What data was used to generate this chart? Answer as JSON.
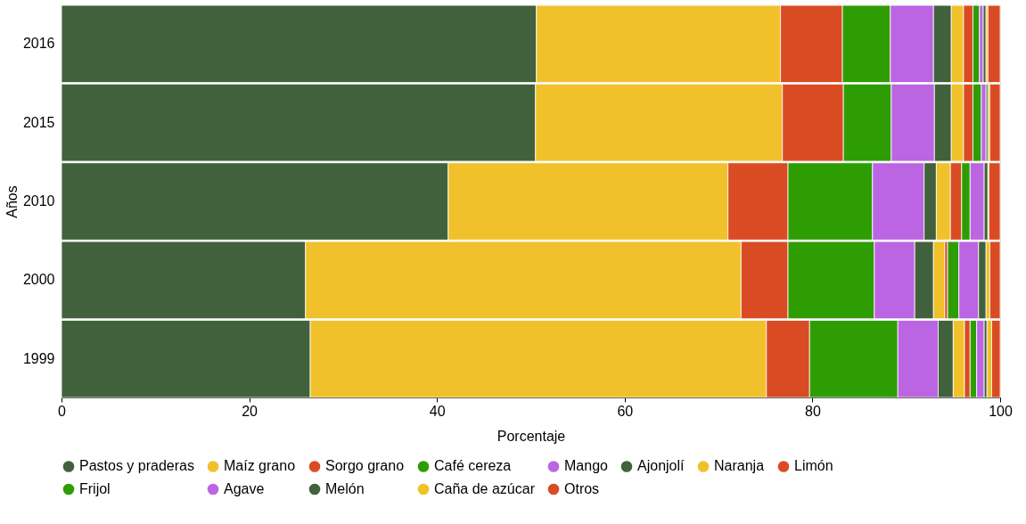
{
  "chart_data": {
    "type": "bar",
    "orientation": "horizontal",
    "stacked": true,
    "xlabel": "Porcentaje",
    "ylabel": "Años",
    "categories": [
      "2016",
      "2015",
      "2010",
      "2000",
      "1999"
    ],
    "xlim": [
      0,
      100
    ],
    "xticks": [
      0,
      20,
      40,
      60,
      80,
      100
    ],
    "legend": "bottom",
    "series": [
      {
        "name": "Pastos y praderas",
        "color": "#41613c",
        "values": [
          50.6,
          50.5,
          41.2,
          26.0,
          26.5
        ]
      },
      {
        "name": "Maíz grano",
        "color": "#f0c12a",
        "values": [
          26.0,
          26.3,
          29.8,
          46.4,
          48.6
        ]
      },
      {
        "name": "Sorgo grano",
        "color": "#d94c23",
        "values": [
          6.6,
          6.5,
          6.4,
          5.0,
          4.6
        ]
      },
      {
        "name": "Café cereza",
        "color": "#2e9d03",
        "values": [
          5.1,
          5.1,
          9.0,
          9.2,
          9.4
        ]
      },
      {
        "name": "Mango",
        "color": "#bb65e3",
        "values": [
          4.6,
          4.6,
          5.5,
          4.3,
          4.3
        ]
      },
      {
        "name": "Ajonjolí",
        "color": "#41613c",
        "values": [
          1.9,
          1.8,
          1.3,
          2.0,
          1.6
        ]
      },
      {
        "name": "Naranja",
        "color": "#f0c12a",
        "values": [
          1.3,
          1.3,
          1.5,
          1.2,
          1.2
        ]
      },
      {
        "name": "Limón",
        "color": "#d94c23",
        "values": [
          1.0,
          1.0,
          1.2,
          0.3,
          0.6
        ]
      },
      {
        "name": "Frijol",
        "color": "#2e9d03",
        "values": [
          0.7,
          0.9,
          0.9,
          1.2,
          0.7
        ]
      },
      {
        "name": "Agave",
        "color": "#bb65e3",
        "values": [
          0.4,
          0.5,
          1.5,
          2.1,
          0.8
        ]
      },
      {
        "name": "Melón",
        "color": "#41613c",
        "values": [
          0.3,
          0.2,
          0.4,
          0.8,
          0.3
        ]
      },
      {
        "name": "Caña de azúcar",
        "color": "#f0c12a",
        "values": [
          0.2,
          0.2,
          0.1,
          0.4,
          0.5
        ]
      },
      {
        "name": "Otros",
        "color": "#d94c23",
        "values": [
          1.3,
          1.1,
          1.2,
          1.1,
          0.9
        ]
      }
    ]
  }
}
